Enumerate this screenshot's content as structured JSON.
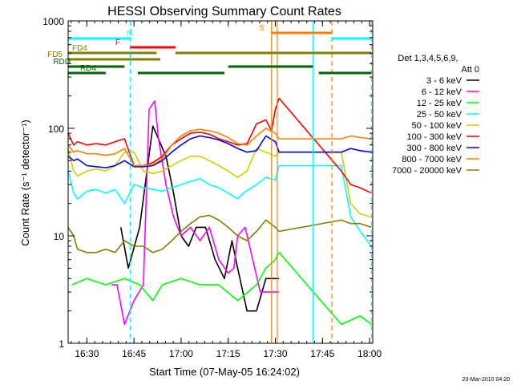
{
  "chart_data": {
    "type": "line",
    "title": "HESSI Observing Summary Count Rates",
    "xlabel": "Start Time (07-May-05 16:24:02)",
    "ylabel": "Count Rate (s⁻¹ detector⁻¹)",
    "yscale": "log",
    "ylim": [
      1,
      1000
    ],
    "xlim": [
      16.4006,
      18.0167
    ],
    "xtick_values": [
      16.5,
      16.75,
      17.0,
      17.25,
      17.5,
      17.75,
      18.0
    ],
    "xtick_labels": [
      "16:30",
      "16:45",
      "17:00",
      "17:15",
      "17:30",
      "17:45",
      "18:00"
    ],
    "ytick_values": [
      1,
      10,
      100,
      1000
    ],
    "ytick_labels": [
      "1",
      "10",
      "100",
      "1000"
    ],
    "legend": {
      "placement": "right",
      "header": [
        "Det 1,3,4,5,6,9,",
        "Att 0"
      ]
    },
    "footer_text": "23-Mar-2010 04:20",
    "series": [
      {
        "name": "3 - 6 keV",
        "color": "#000000",
        "x": [
          16.4,
          16.63,
          16.68,
          16.72,
          16.78,
          16.85,
          16.92,
          16.96,
          17.0,
          17.04,
          17.08,
          17.13,
          17.18,
          17.23,
          17.27,
          17.3,
          17.35,
          17.4,
          17.45,
          17.48,
          17.52
        ],
        "y": [
          null,
          null,
          12,
          5,
          12,
          105,
          55,
          25,
          10,
          8,
          12,
          12,
          6,
          4,
          9,
          5,
          2,
          2,
          4,
          4,
          4
        ]
      },
      {
        "name": "6 - 12 keV",
        "color": "#ff00ff",
        "x": [
          16.63,
          16.66,
          16.7,
          16.75,
          16.8,
          16.83,
          16.86,
          16.88,
          16.92,
          16.96,
          17.0,
          17.05,
          17.1,
          17.15,
          17.2,
          17.25,
          17.28,
          17.3,
          17.34,
          17.38,
          17.42,
          17.48,
          17.52
        ],
        "y": [
          3.5,
          3.5,
          1.5,
          2.5,
          3.5,
          150,
          180,
          80,
          30,
          15,
          10,
          12,
          9,
          12,
          6,
          4.5,
          5,
          10,
          12,
          6,
          3,
          3,
          3
        ]
      },
      {
        "name": "12 - 25 keV",
        "color": "#00ff00",
        "x": [
          16.42,
          16.5,
          16.6,
          16.7,
          16.78,
          16.85,
          16.9,
          17.0,
          17.1,
          17.2,
          17.3,
          17.4,
          17.45,
          17.5,
          17.52,
          17.85,
          17.95,
          18.01
        ],
        "y": [
          3.5,
          4,
          3.5,
          4,
          3.5,
          2.5,
          3.5,
          4,
          3.5,
          3.5,
          2.5,
          3.5,
          5,
          6,
          7,
          1.5,
          1.8,
          1.5
        ]
      },
      {
        "name": "25 - 50 keV",
        "color": "#00ffff",
        "x": [
          16.4,
          16.43,
          16.45,
          16.5,
          16.55,
          16.6,
          16.65,
          16.7,
          16.75,
          16.8,
          16.85,
          16.9,
          16.95,
          17.0,
          17.05,
          17.1,
          17.15,
          17.2,
          17.25,
          17.3,
          17.33,
          17.4,
          17.45,
          17.5,
          17.52,
          17.85,
          17.9,
          17.95,
          18.01
        ],
        "y": [
          40,
          25,
          22,
          26,
          27,
          25,
          27,
          20,
          30,
          28,
          27,
          26,
          28,
          30,
          32,
          34,
          30,
          28,
          25,
          22,
          25,
          30,
          35,
          33,
          45,
          45,
          15,
          11,
          8
        ]
      },
      {
        "name": "50 - 100 keV",
        "color": "#d0d000",
        "x": [
          16.4,
          16.43,
          16.45,
          16.5,
          16.55,
          16.6,
          16.65,
          16.7,
          16.75,
          16.8,
          16.85,
          16.9,
          16.95,
          17.0,
          17.05,
          17.1,
          17.15,
          17.2,
          17.25,
          17.3,
          17.35,
          17.4,
          17.45,
          17.5,
          17.52,
          17.85,
          17.9,
          17.95,
          18.01
        ],
        "y": [
          65,
          40,
          36,
          40,
          42,
          40,
          45,
          60,
          60,
          40,
          38,
          40,
          45,
          50,
          55,
          55,
          50,
          45,
          40,
          35,
          40,
          65,
          60,
          55,
          60,
          60,
          20,
          16,
          15
        ]
      },
      {
        "name": "100 - 300 keV",
        "color": "#ff0000",
        "x": [
          16.4,
          16.43,
          16.45,
          16.5,
          16.55,
          16.6,
          16.65,
          16.7,
          16.75,
          16.8,
          16.85,
          16.9,
          16.95,
          17.0,
          17.05,
          17.1,
          17.15,
          17.2,
          17.25,
          17.3,
          17.35,
          17.4,
          17.45,
          17.48,
          17.5,
          17.52,
          17.85,
          17.9,
          17.95,
          18.01
        ],
        "y": [
          90,
          70,
          75,
          70,
          72,
          70,
          75,
          80,
          45,
          45,
          48,
          55,
          70,
          80,
          90,
          92,
          88,
          80,
          75,
          70,
          72,
          110,
          120,
          95,
          150,
          190,
          40,
          30,
          28,
          25
        ]
      },
      {
        "name": "300 - 800 keV",
        "color": "#0000ff",
        "x": [
          16.4,
          16.43,
          16.45,
          16.5,
          16.55,
          16.6,
          16.65,
          16.7,
          16.75,
          16.8,
          16.85,
          16.9,
          16.95,
          17.0,
          17.05,
          17.1,
          17.15,
          17.2,
          17.25,
          17.3,
          17.35,
          17.4,
          17.45,
          17.5,
          17.52,
          17.85,
          17.9,
          17.95,
          18.01
        ],
        "y": [
          55,
          50,
          52,
          45,
          44,
          43,
          45,
          50,
          44,
          44,
          45,
          50,
          60,
          70,
          80,
          85,
          82,
          78,
          72,
          65,
          60,
          62,
          85,
          75,
          60,
          60,
          65,
          62,
          60
        ]
      },
      {
        "name": "800 - 7000 keV",
        "color": "#ff8000",
        "x": [
          16.4,
          16.43,
          16.45,
          16.5,
          16.55,
          16.6,
          16.65,
          16.7,
          16.75,
          16.8,
          16.85,
          16.9,
          16.95,
          17.0,
          17.05,
          17.1,
          17.15,
          17.2,
          17.25,
          17.3,
          17.35,
          17.4,
          17.45,
          17.5,
          17.52,
          17.85,
          17.9,
          17.95,
          18.01
        ],
        "y": [
          70,
          60,
          62,
          58,
          58,
          56,
          58,
          65,
          45,
          45,
          46,
          52,
          70,
          85,
          95,
          98,
          95,
          90,
          82,
          72,
          70,
          85,
          100,
          90,
          80,
          80,
          85,
          82,
          80
        ]
      },
      {
        "name": "7000 - 20000 keV",
        "color": "#808000",
        "x": [
          16.4,
          16.43,
          16.45,
          16.5,
          16.55,
          16.6,
          16.65,
          16.7,
          16.75,
          16.8,
          16.85,
          16.9,
          16.95,
          17.0,
          17.05,
          17.1,
          17.15,
          17.2,
          17.25,
          17.3,
          17.35,
          17.4,
          17.45,
          17.5,
          17.52,
          17.85,
          17.9,
          17.95,
          18.01
        ],
        "y": [
          12,
          10,
          7.5,
          7,
          7,
          7.5,
          7,
          9,
          8,
          8,
          7,
          7.5,
          9,
          11,
          13,
          15,
          15.5,
          14,
          12,
          10,
          9,
          11,
          14,
          12,
          11,
          14,
          13,
          13,
          12
        ]
      }
    ],
    "state_bars": [
      {
        "label": "N",
        "color": "#00ffff",
        "intervals": [
          [
            16.4,
            16.73
          ],
          [
            17.8,
            18.01
          ]
        ]
      },
      {
        "label": "F",
        "color": "#ff0000",
        "intervals": [
          [
            16.73,
            16.97
          ]
        ]
      },
      {
        "label": "S",
        "color": "#ff8000",
        "intervals": [
          [
            17.48,
            17.8
          ]
        ]
      },
      {
        "label": "FD4",
        "color": "#808000",
        "intervals": [
          [
            16.4,
            16.87
          ],
          [
            16.97,
            18.01
          ]
        ]
      },
      {
        "label": "FD5",
        "color": "#808000",
        "intervals": [
          [
            16.4,
            16.89
          ]
        ]
      },
      {
        "label": "RDD",
        "color": "#006400",
        "intervals": [
          [
            16.4,
            16.7
          ],
          [
            17.25,
            17.7
          ]
        ]
      },
      {
        "label": "RD4",
        "color": "#006400",
        "intervals": [
          [
            16.4,
            16.6
          ],
          [
            16.77,
            17.23
          ],
          [
            17.73,
            18.01
          ]
        ]
      }
    ],
    "vertical_markers": [
      {
        "x": 16.73,
        "color": "#00ffff",
        "style": "dashed"
      },
      {
        "x": 17.48,
        "color": "#ff8000",
        "style": "solid"
      },
      {
        "x": 17.51,
        "color": "#ff8000",
        "style": "solid"
      },
      {
        "x": 17.7,
        "color": "#00ffff",
        "style": "solid"
      },
      {
        "x": 17.8,
        "color": "#ff8000",
        "style": "dashed"
      },
      {
        "x": 18.01,
        "color": "#00ffff",
        "style": "dashed"
      }
    ]
  }
}
